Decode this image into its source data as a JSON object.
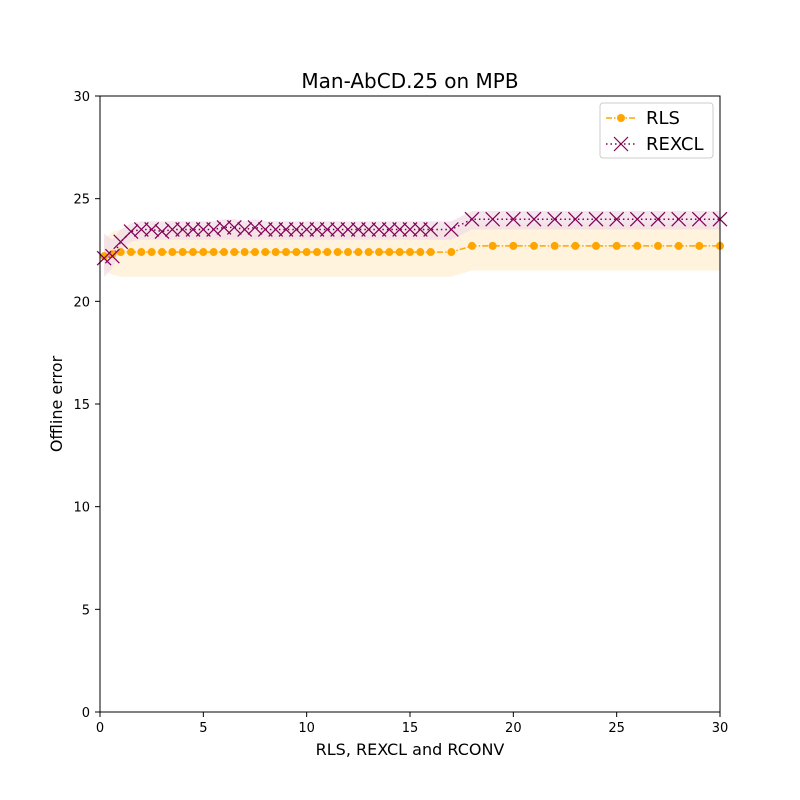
{
  "chart_data": {
    "type": "line",
    "title": "Man-AbCD.25 on MPB",
    "xlabel": "RLS, REXCL and RCONV",
    "ylabel": "Offline error",
    "xlim": [
      0,
      30
    ],
    "ylim": [
      0,
      30
    ],
    "xticks": [
      "0",
      "5",
      "10",
      "15",
      "20",
      "25",
      "30"
    ],
    "yticks": [
      "0",
      "5",
      "10",
      "15",
      "20",
      "25",
      "30"
    ],
    "grid": false,
    "legend_position": "top-right",
    "series": [
      {
        "name": "RLS",
        "color": "#ffa500",
        "band_color": "#fff3dd",
        "marker": "circle",
        "line_style": "dashdot",
        "x": [
          0.2,
          0.6,
          1,
          1.5,
          2,
          2.5,
          3,
          3.5,
          4,
          4.5,
          5,
          5.5,
          6,
          6.5,
          7,
          7.5,
          8,
          8.5,
          9,
          9.5,
          10,
          10.5,
          11,
          11.5,
          12,
          12.5,
          13,
          13.5,
          14,
          14.5,
          15,
          15.5,
          16,
          17,
          18,
          19,
          20,
          21,
          22,
          23,
          24,
          25,
          26,
          27,
          28,
          29,
          30
        ],
        "y": [
          22.2,
          22.3,
          22.4,
          22.4,
          22.4,
          22.4,
          22.4,
          22.4,
          22.4,
          22.4,
          22.4,
          22.4,
          22.4,
          22.4,
          22.4,
          22.4,
          22.4,
          22.4,
          22.4,
          22.4,
          22.4,
          22.4,
          22.4,
          22.4,
          22.4,
          22.4,
          22.4,
          22.4,
          22.4,
          22.4,
          22.4,
          22.4,
          22.4,
          22.4,
          22.7,
          22.7,
          22.7,
          22.7,
          22.7,
          22.7,
          22.7,
          22.7,
          22.7,
          22.7,
          22.7,
          22.7,
          22.7
        ],
        "lower": [
          21.5,
          21.3,
          21.2,
          21.2,
          21.2,
          21.2,
          21.2,
          21.2,
          21.2,
          21.2,
          21.2,
          21.2,
          21.2,
          21.2,
          21.2,
          21.2,
          21.2,
          21.2,
          21.2,
          21.2,
          21.2,
          21.2,
          21.2,
          21.2,
          21.2,
          21.2,
          21.2,
          21.2,
          21.2,
          21.2,
          21.2,
          21.2,
          21.2,
          21.2,
          21.5,
          21.5,
          21.5,
          21.5,
          21.5,
          21.5,
          21.5,
          21.5,
          21.5,
          21.5,
          21.5,
          21.5,
          21.5
        ],
        "upper": [
          23.0,
          23.4,
          23.5,
          23.5,
          23.5,
          23.5,
          23.5,
          23.5,
          23.5,
          23.5,
          23.5,
          23.5,
          23.5,
          23.5,
          23.5,
          23.5,
          23.5,
          23.5,
          23.5,
          23.5,
          23.5,
          23.5,
          23.5,
          23.5,
          23.5,
          23.5,
          23.5,
          23.5,
          23.5,
          23.5,
          23.5,
          23.5,
          23.5,
          23.5,
          23.8,
          23.8,
          23.8,
          23.8,
          23.8,
          23.8,
          23.8,
          23.8,
          23.8,
          23.8,
          23.8,
          23.8,
          23.8
        ]
      },
      {
        "name": "REXCL",
        "color": "#800055",
        "band_color": "#f2dce6",
        "marker": "x",
        "line_style": "dotted",
        "x": [
          0.2,
          0.6,
          1,
          1.5,
          2,
          2.5,
          3,
          3.5,
          4,
          4.5,
          5,
          5.5,
          6,
          6.5,
          7,
          7.5,
          8,
          8.5,
          9,
          9.5,
          10,
          10.5,
          11,
          11.5,
          12,
          12.5,
          13,
          13.5,
          14,
          14.5,
          15,
          15.5,
          16,
          17,
          18,
          19,
          20,
          21,
          22,
          23,
          24,
          25,
          26,
          27,
          28,
          29,
          30
        ],
        "y": [
          22.1,
          22.2,
          22.9,
          23.4,
          23.5,
          23.5,
          23.4,
          23.5,
          23.5,
          23.5,
          23.5,
          23.5,
          23.6,
          23.6,
          23.5,
          23.6,
          23.5,
          23.5,
          23.5,
          23.5,
          23.5,
          23.5,
          23.5,
          23.5,
          23.5,
          23.5,
          23.5,
          23.5,
          23.5,
          23.5,
          23.5,
          23.5,
          23.5,
          23.5,
          24.0,
          24.0,
          24.0,
          24.0,
          24.0,
          24.0,
          24.0,
          24.0,
          24.0,
          24.0,
          24.0,
          24.0,
          24.0
        ],
        "lower": [
          21.2,
          21.6,
          22.5,
          22.9,
          23.0,
          23.0,
          23.0,
          23.0,
          23.0,
          23.0,
          23.0,
          23.0,
          23.0,
          23.0,
          23.0,
          23.0,
          23.0,
          23.0,
          23.0,
          23.0,
          23.0,
          23.0,
          23.0,
          23.0,
          23.0,
          23.0,
          23.0,
          23.0,
          23.0,
          23.0,
          23.0,
          23.0,
          23.0,
          23.0,
          23.5,
          23.5,
          23.5,
          23.5,
          23.5,
          23.5,
          23.5,
          23.5,
          23.5,
          23.5,
          23.5,
          23.5,
          23.5
        ],
        "upper": [
          23.3,
          23.0,
          23.5,
          23.8,
          23.9,
          23.9,
          23.9,
          23.9,
          23.9,
          23.9,
          23.9,
          23.9,
          24.0,
          24.0,
          23.9,
          24.0,
          23.9,
          23.9,
          23.9,
          23.9,
          23.9,
          23.9,
          23.9,
          23.9,
          23.9,
          23.9,
          23.9,
          23.9,
          23.9,
          23.9,
          23.9,
          23.9,
          23.9,
          23.9,
          24.4,
          24.4,
          24.4,
          24.4,
          24.4,
          24.4,
          24.4,
          24.4,
          24.4,
          24.4,
          24.4,
          24.4,
          24.4
        ]
      }
    ]
  }
}
